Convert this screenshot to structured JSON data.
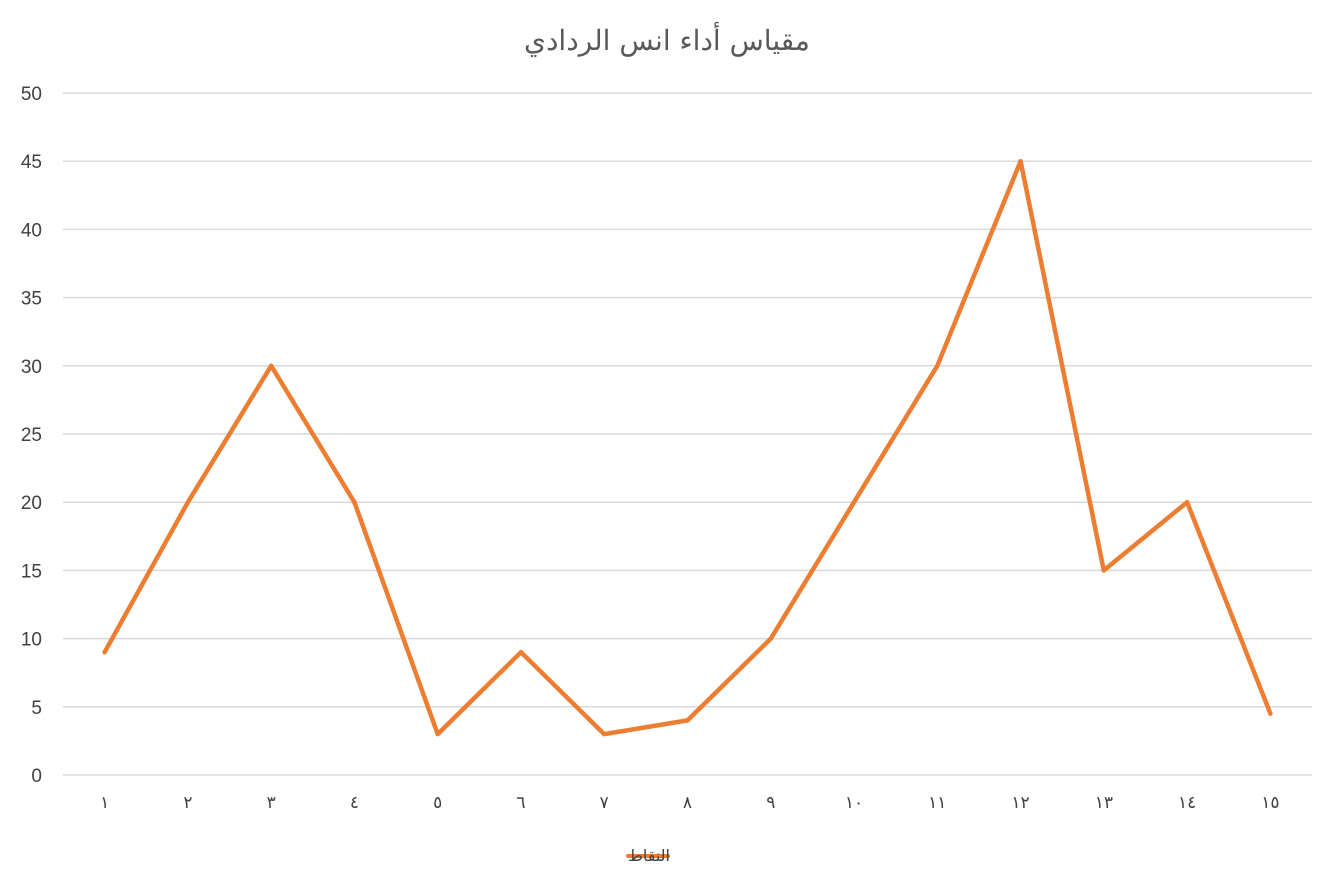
{
  "chart_data": {
    "type": "line",
    "title": "مقياس أداء انس الردادي",
    "xlabel": "",
    "ylabel": "",
    "categories": [
      "١",
      "٢",
      "٣",
      "٤",
      "٥",
      "٦",
      "٧",
      "٨",
      "٩",
      "١٠",
      "١١",
      "١٢",
      "١٣",
      "١٤",
      "١٥"
    ],
    "series": [
      {
        "name": "النقاط",
        "color": "#ED7D31",
        "values": [
          9,
          20,
          30,
          20,
          3,
          9,
          3,
          4,
          10,
          20,
          30,
          45,
          15,
          20,
          4.5
        ]
      }
    ],
    "ylim": [
      0,
      50
    ],
    "yticks": [
      0,
      5,
      10,
      15,
      20,
      25,
      30,
      35,
      40,
      45,
      50
    ],
    "grid": true,
    "legend_position": "bottom"
  }
}
